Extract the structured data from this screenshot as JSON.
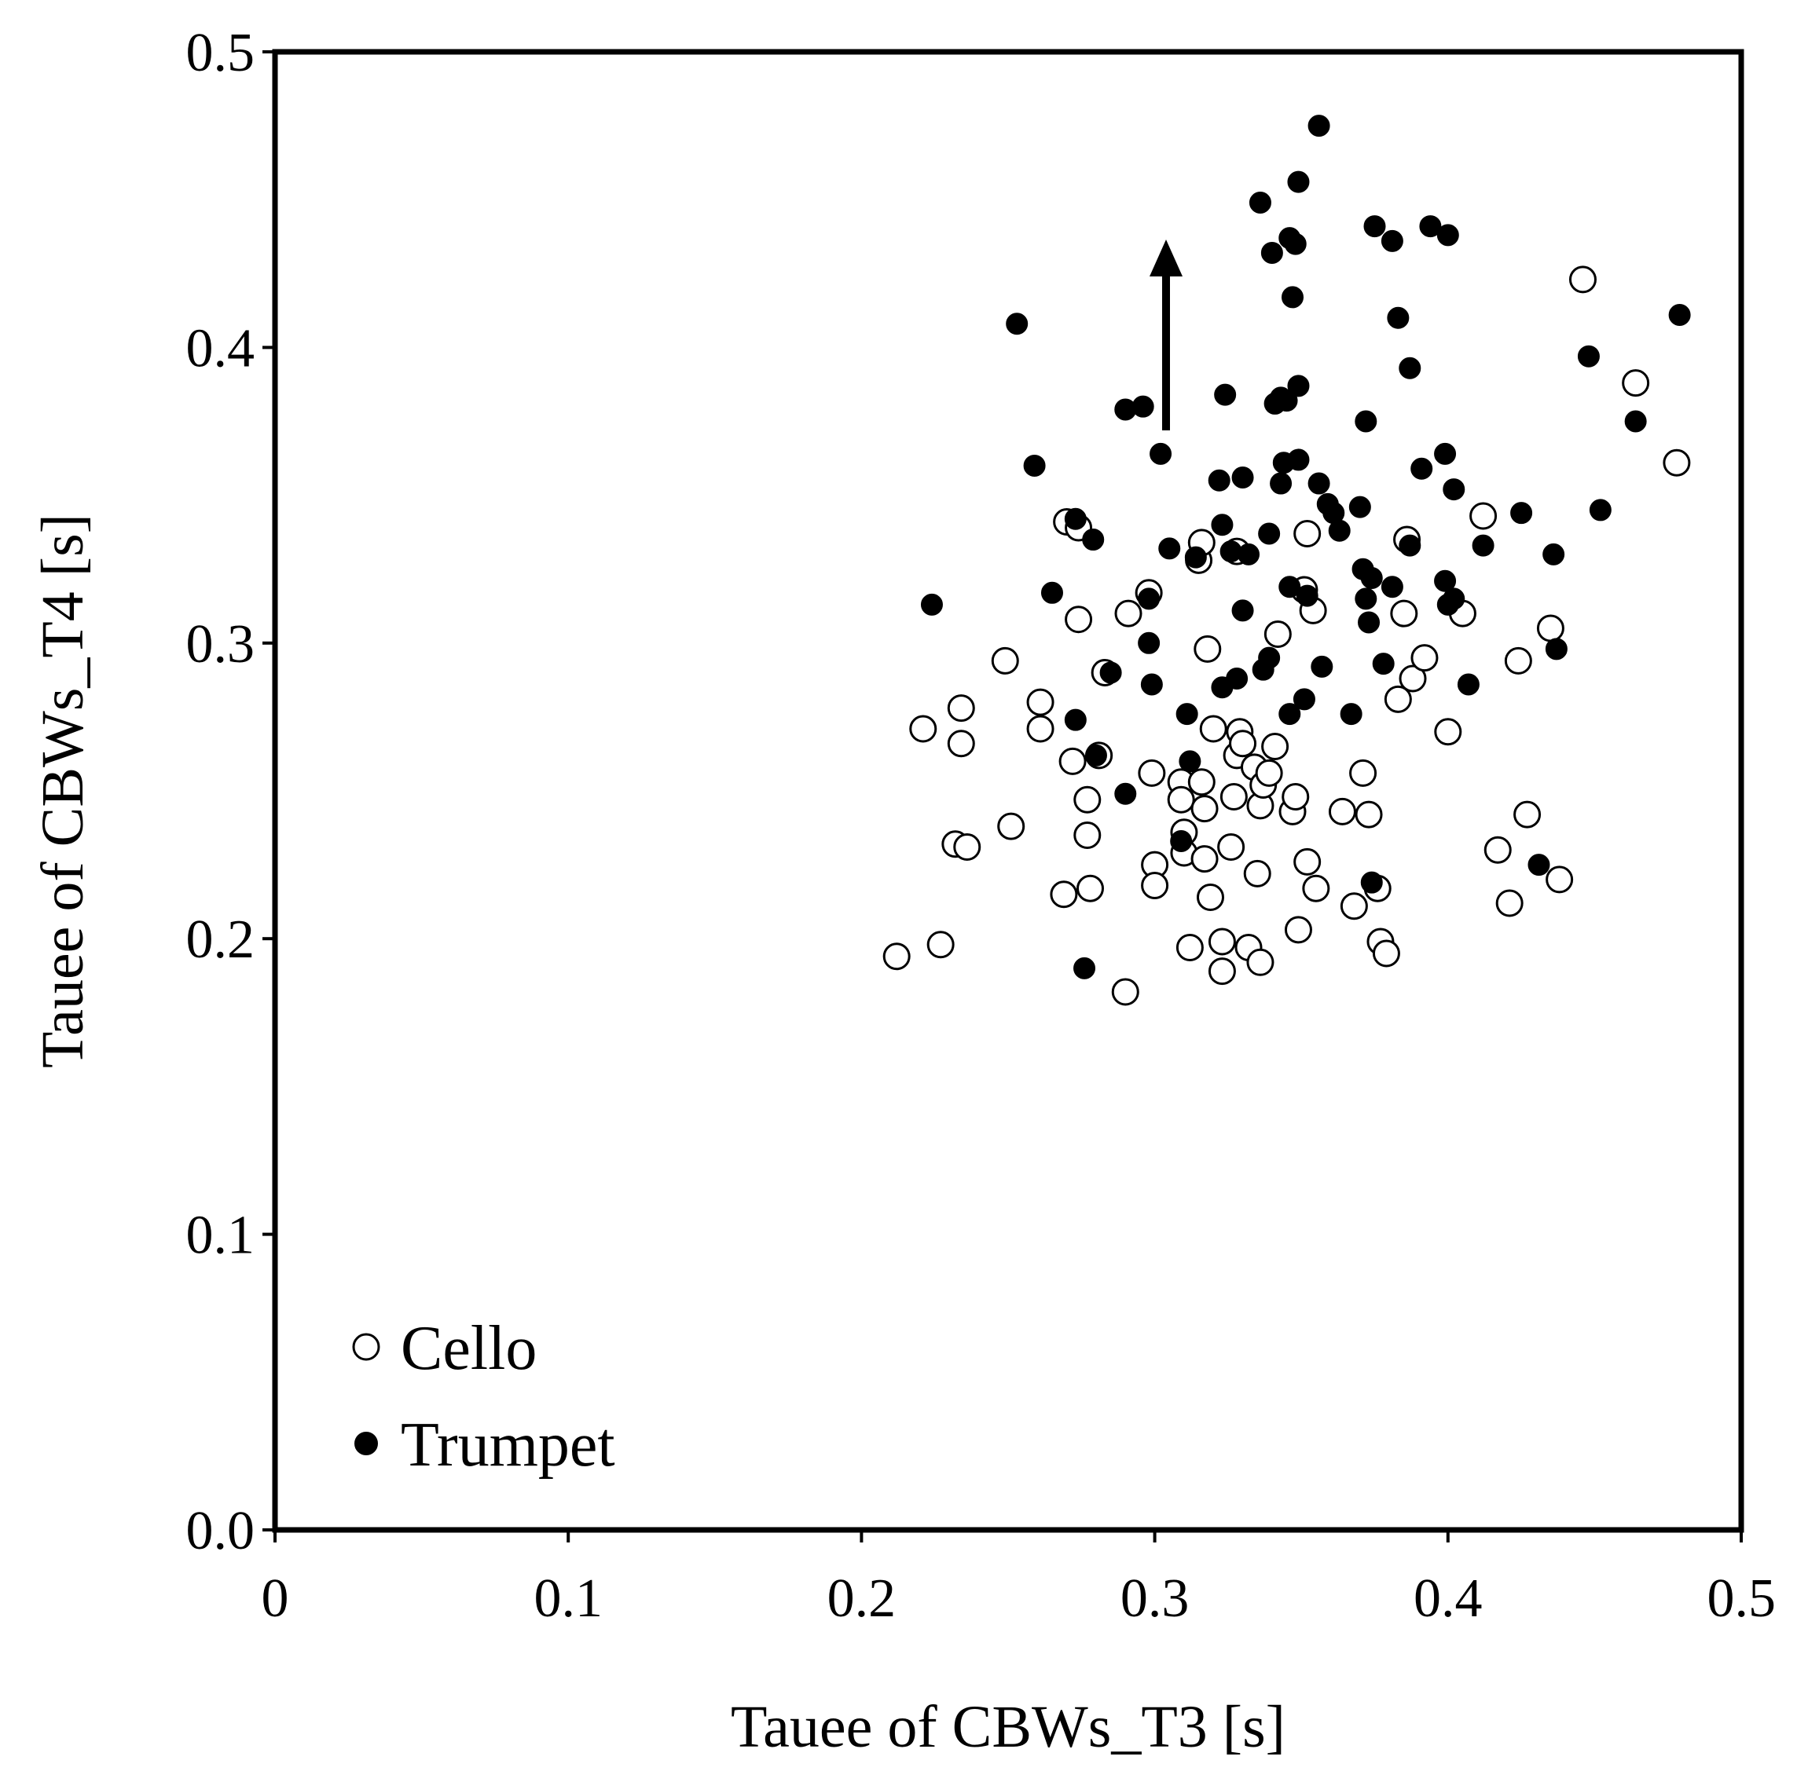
{
  "chart_data": {
    "type": "scatter",
    "title": "",
    "xlabel": "Tauee of CBWs_T3 [s]",
    "ylabel": "Tauee of CBWs_T4 [s]",
    "xlim": [
      0,
      0.5
    ],
    "ylim": [
      0,
      0.5
    ],
    "x_ticks": [
      "0",
      "0.1",
      "0.2",
      "0.3",
      "0.4",
      "0.5"
    ],
    "y_ticks": [
      "0.0",
      "0.1",
      "0.2",
      "0.3",
      "0.4",
      "0.5"
    ],
    "legend_position": "bottom-left",
    "annotation": "upward arrow",
    "series": [
      {
        "name": "Cello",
        "marker": "open-circle",
        "points": [
          [
            0.212,
            0.194
          ],
          [
            0.227,
            0.198
          ],
          [
            0.221,
            0.271
          ],
          [
            0.234,
            0.278
          ],
          [
            0.234,
            0.266
          ],
          [
            0.232,
            0.232
          ],
          [
            0.236,
            0.231
          ],
          [
            0.249,
            0.294
          ],
          [
            0.251,
            0.238
          ],
          [
            0.261,
            0.28
          ],
          [
            0.261,
            0.271
          ],
          [
            0.269,
            0.215
          ],
          [
            0.27,
            0.341
          ],
          [
            0.272,
            0.26
          ],
          [
            0.274,
            0.308
          ],
          [
            0.274,
            0.339
          ],
          [
            0.277,
            0.235
          ],
          [
            0.277,
            0.247
          ],
          [
            0.278,
            0.217
          ],
          [
            0.281,
            0.262
          ],
          [
            0.283,
            0.29
          ],
          [
            0.29,
            0.182
          ],
          [
            0.291,
            0.31
          ],
          [
            0.298,
            0.317
          ],
          [
            0.299,
            0.256
          ],
          [
            0.3,
            0.225
          ],
          [
            0.3,
            0.218
          ],
          [
            0.309,
            0.253
          ],
          [
            0.309,
            0.247
          ],
          [
            0.31,
            0.236
          ],
          [
            0.31,
            0.229
          ],
          [
            0.312,
            0.197
          ],
          [
            0.315,
            0.328
          ],
          [
            0.316,
            0.334
          ],
          [
            0.316,
            0.253
          ],
          [
            0.317,
            0.244
          ],
          [
            0.317,
            0.227
          ],
          [
            0.318,
            0.298
          ],
          [
            0.319,
            0.214
          ],
          [
            0.32,
            0.271
          ],
          [
            0.323,
            0.199
          ],
          [
            0.323,
            0.189
          ],
          [
            0.326,
            0.231
          ],
          [
            0.327,
            0.248
          ],
          [
            0.328,
            0.331
          ],
          [
            0.328,
            0.262
          ],
          [
            0.329,
            0.27
          ],
          [
            0.33,
            0.266
          ],
          [
            0.332,
            0.197
          ],
          [
            0.334,
            0.258
          ],
          [
            0.335,
            0.222
          ],
          [
            0.336,
            0.192
          ],
          [
            0.336,
            0.245
          ],
          [
            0.337,
            0.252
          ],
          [
            0.339,
            0.256
          ],
          [
            0.341,
            0.265
          ],
          [
            0.342,
            0.303
          ],
          [
            0.347,
            0.243
          ],
          [
            0.348,
            0.248
          ],
          [
            0.349,
            0.203
          ],
          [
            0.351,
            0.318
          ],
          [
            0.352,
            0.226
          ],
          [
            0.352,
            0.337
          ],
          [
            0.354,
            0.311
          ],
          [
            0.355,
            0.217
          ],
          [
            0.364,
            0.243
          ],
          [
            0.368,
            0.211
          ],
          [
            0.371,
            0.256
          ],
          [
            0.373,
            0.242
          ],
          [
            0.376,
            0.217
          ],
          [
            0.377,
            0.199
          ],
          [
            0.379,
            0.195
          ],
          [
            0.383,
            0.281
          ],
          [
            0.385,
            0.31
          ],
          [
            0.386,
            0.335
          ],
          [
            0.388,
            0.288
          ],
          [
            0.392,
            0.295
          ],
          [
            0.4,
            0.27
          ],
          [
            0.405,
            0.31
          ],
          [
            0.412,
            0.343
          ],
          [
            0.417,
            0.23
          ],
          [
            0.421,
            0.212
          ],
          [
            0.424,
            0.294
          ],
          [
            0.427,
            0.242
          ],
          [
            0.435,
            0.305
          ],
          [
            0.438,
            0.22
          ],
          [
            0.446,
            0.423
          ],
          [
            0.464,
            0.388
          ],
          [
            0.478,
            0.361
          ]
        ]
      },
      {
        "name": "Trumpet",
        "marker": "filled-circle",
        "points": [
          [
            0.224,
            0.313
          ],
          [
            0.253,
            0.408
          ],
          [
            0.259,
            0.36
          ],
          [
            0.265,
            0.317
          ],
          [
            0.273,
            0.342
          ],
          [
            0.273,
            0.274
          ],
          [
            0.276,
            0.19
          ],
          [
            0.279,
            0.335
          ],
          [
            0.28,
            0.262
          ],
          [
            0.285,
            0.29
          ],
          [
            0.29,
            0.379
          ],
          [
            0.29,
            0.249
          ],
          [
            0.296,
            0.38
          ],
          [
            0.298,
            0.315
          ],
          [
            0.298,
            0.3
          ],
          [
            0.299,
            0.286
          ],
          [
            0.302,
            0.364
          ],
          [
            0.305,
            0.332
          ],
          [
            0.309,
            0.233
          ],
          [
            0.311,
            0.276
          ],
          [
            0.312,
            0.26
          ],
          [
            0.314,
            0.329
          ],
          [
            0.322,
            0.355
          ],
          [
            0.323,
            0.285
          ],
          [
            0.323,
            0.34
          ],
          [
            0.324,
            0.384
          ],
          [
            0.326,
            0.331
          ],
          [
            0.328,
            0.288
          ],
          [
            0.33,
            0.311
          ],
          [
            0.33,
            0.356
          ],
          [
            0.332,
            0.33
          ],
          [
            0.336,
            0.449
          ],
          [
            0.337,
            0.291
          ],
          [
            0.339,
            0.295
          ],
          [
            0.339,
            0.337
          ],
          [
            0.34,
            0.432
          ],
          [
            0.341,
            0.381
          ],
          [
            0.343,
            0.383
          ],
          [
            0.343,
            0.354
          ],
          [
            0.344,
            0.361
          ],
          [
            0.345,
            0.382
          ],
          [
            0.346,
            0.319
          ],
          [
            0.346,
            0.276
          ],
          [
            0.346,
            0.437
          ],
          [
            0.347,
            0.417
          ],
          [
            0.348,
            0.435
          ],
          [
            0.349,
            0.387
          ],
          [
            0.349,
            0.362
          ],
          [
            0.349,
            0.456
          ],
          [
            0.351,
            0.281
          ],
          [
            0.352,
            0.316
          ],
          [
            0.356,
            0.354
          ],
          [
            0.356,
            0.475
          ],
          [
            0.357,
            0.292
          ],
          [
            0.359,
            0.347
          ],
          [
            0.361,
            0.344
          ],
          [
            0.363,
            0.338
          ],
          [
            0.367,
            0.276
          ],
          [
            0.37,
            0.346
          ],
          [
            0.371,
            0.325
          ],
          [
            0.372,
            0.315
          ],
          [
            0.372,
            0.375
          ],
          [
            0.373,
            0.307
          ],
          [
            0.374,
            0.219
          ],
          [
            0.374,
            0.322
          ],
          [
            0.375,
            0.441
          ],
          [
            0.378,
            0.293
          ],
          [
            0.381,
            0.436
          ],
          [
            0.381,
            0.319
          ],
          [
            0.383,
            0.41
          ],
          [
            0.387,
            0.393
          ],
          [
            0.387,
            0.333
          ],
          [
            0.391,
            0.359
          ],
          [
            0.394,
            0.441
          ],
          [
            0.399,
            0.321
          ],
          [
            0.399,
            0.364
          ],
          [
            0.4,
            0.438
          ],
          [
            0.4,
            0.313
          ],
          [
            0.402,
            0.352
          ],
          [
            0.402,
            0.315
          ],
          [
            0.407,
            0.286
          ],
          [
            0.412,
            0.333
          ],
          [
            0.425,
            0.344
          ],
          [
            0.431,
            0.225
          ],
          [
            0.436,
            0.33
          ],
          [
            0.437,
            0.298
          ],
          [
            0.448,
            0.397
          ],
          [
            0.452,
            0.345
          ],
          [
            0.464,
            0.375
          ],
          [
            0.479,
            0.411
          ]
        ]
      }
    ]
  }
}
